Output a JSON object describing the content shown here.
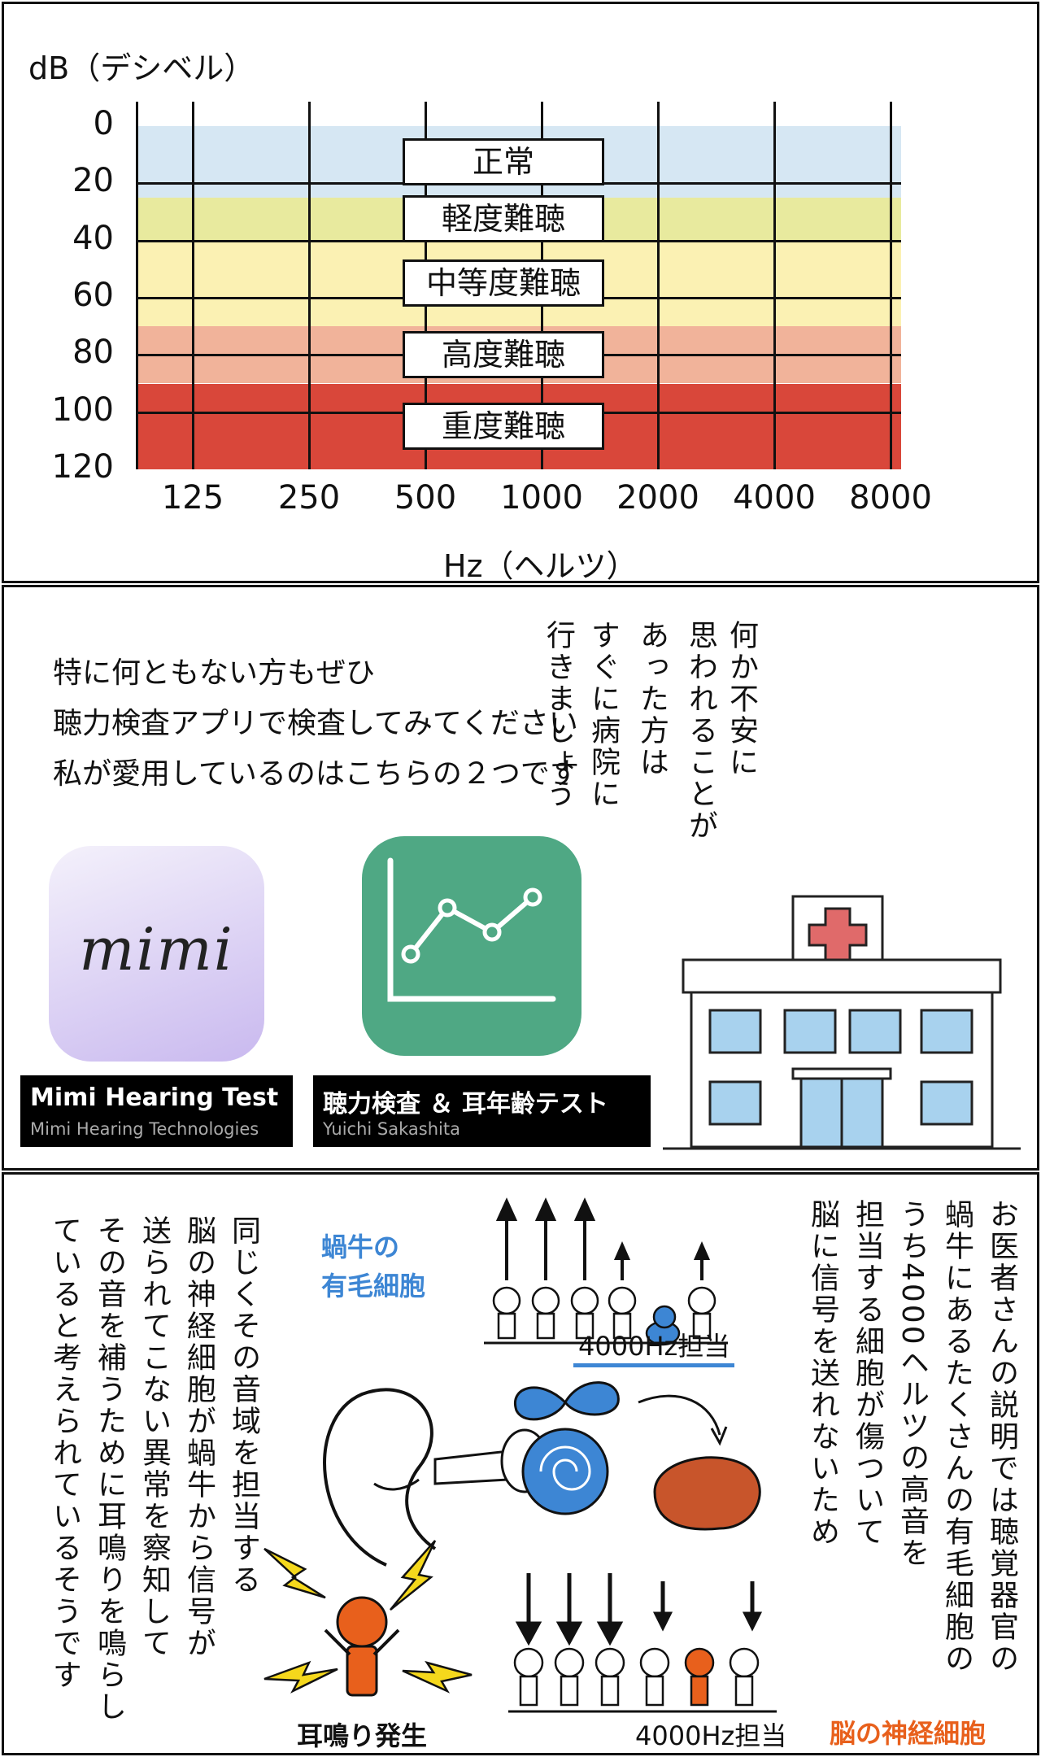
{
  "chart_data": {
    "type": "heatmap",
    "ylabel": "dB（デシベル）",
    "xlabel": "Hz（ヘルツ）",
    "y_ticks": [
      "0",
      "20",
      "40",
      "60",
      "80",
      "100",
      "120"
    ],
    "x_ticks": [
      "125",
      "250",
      "500",
      "1000",
      "2000",
      "4000",
      "8000"
    ],
    "ylim": [
      0,
      120
    ],
    "bands": [
      {
        "name": "正常",
        "from": 0,
        "to": 25,
        "color": "#d6e7f3"
      },
      {
        "name": "軽度難聴",
        "from": 25,
        "to": 40,
        "color": "#e8ea9e"
      },
      {
        "name": "中等度難聴",
        "from": 40,
        "to": 70,
        "color": "#fbf1b3"
      },
      {
        "name": "高度難聴",
        "from": 70,
        "to": 90,
        "color": "#f1b39a"
      },
      {
        "name": "重度難聴",
        "from": 90,
        "to": 120,
        "color": "#d9473a"
      }
    ]
  },
  "panel2": {
    "intro_lines": [
      "特に何ともない方もぜひ",
      "聴力検査アプリで検査してみてください",
      "私が愛用しているのはこちらの２つです"
    ],
    "vertical_lines": [
      "何か不安に",
      "思われることが",
      "あった方は",
      "すぐに病院に",
      "行きましょう"
    ],
    "apps": [
      {
        "icon_text": "mimi",
        "title": "Mimi Hearing Test",
        "developer": "Mimi Hearing Technologies"
      },
      {
        "title": "聴力検査 ＆ 耳年齢テスト",
        "developer": "Yuichi Sakashita"
      }
    ]
  },
  "panel3": {
    "right_text": [
      "お医者さんの説明では聴覚器官の",
      "蝸牛にあるたくさんの有毛細胞の",
      "うち4000ヘルツの高音を",
      "担当する細胞が傷ついて",
      "脳に信号を送れないため"
    ],
    "left_text": [
      "同じくその音域を担当する",
      "脳の神経細胞が蝸牛から信号が",
      "送られてこない異常を察知して",
      "その音を補うために耳鳴りを鳴らし",
      "ていると考えられているそうです"
    ],
    "hair_cells_label": [
      "蝸牛の",
      "有毛細胞"
    ],
    "band_label_top": "4000Hz担当",
    "band_label_bottom": "4000Hz担当",
    "neurons_label": "脳の神経細胞",
    "tinnitus_label": "耳鳴り発生",
    "colors": {
      "blue": "#3d86d4",
      "orange": "#e8601c",
      "brain": "#c8552b"
    }
  }
}
